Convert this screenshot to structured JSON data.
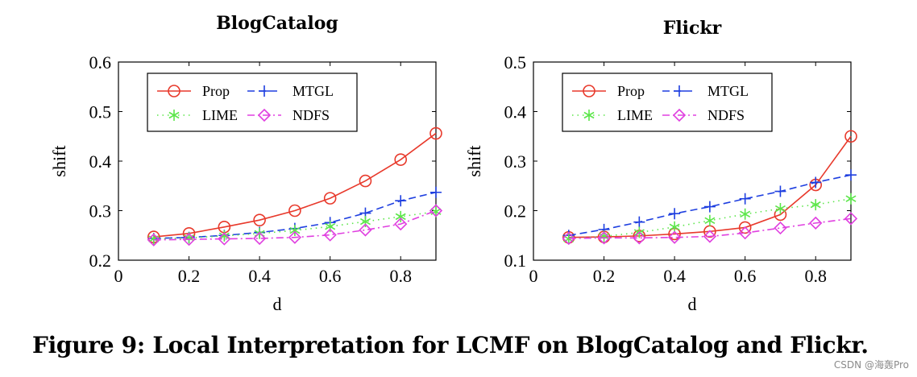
{
  "caption": "Figure 9: Local Interpretation for LCMF on BlogCatalog and Flickr.",
  "watermark": "CSDN @海轰Pro",
  "chart_data": [
    {
      "type": "line",
      "title": "BlogCatalog",
      "xlabel": "d",
      "ylabel": "shift",
      "xlim": [
        0,
        0.9
      ],
      "ylim": [
        0.2,
        0.6
      ],
      "xticks": [
        0,
        0.2,
        0.4,
        0.6,
        0.8
      ],
      "xtick_labels": [
        "0",
        "0.2",
        "0.4",
        "0.6",
        "0.8"
      ],
      "yticks": [
        0.2,
        0.3,
        0.4,
        0.5,
        0.6
      ],
      "ytick_labels": [
        "0.2",
        "0.3",
        "0.4",
        "0.5",
        "0.6"
      ],
      "legend_position": "top-left",
      "x": [
        0.1,
        0.2,
        0.3,
        0.4,
        0.5,
        0.6,
        0.7,
        0.8,
        0.9
      ],
      "series": [
        {
          "name": "Prop",
          "color": "#e8392b",
          "marker": "circle",
          "dash": "solid",
          "values": [
            0.247,
            0.254,
            0.267,
            0.281,
            0.3,
            0.325,
            0.36,
            0.403,
            0.456
          ]
        },
        {
          "name": "MTGL",
          "color": "#1e3fe0",
          "marker": "plus",
          "dash": "dashed",
          "values": [
            0.244,
            0.246,
            0.25,
            0.256,
            0.264,
            0.276,
            0.295,
            0.32,
            0.337
          ]
        },
        {
          "name": "LIME",
          "color": "#5ce64a",
          "marker": "asterisk",
          "dash": "dotted",
          "values": [
            0.243,
            0.245,
            0.249,
            0.254,
            0.26,
            0.268,
            0.278,
            0.288,
            0.298
          ]
        },
        {
          "name": "NDFS",
          "color": "#e040e0",
          "marker": "diamond",
          "dash": "dashdot",
          "values": [
            0.241,
            0.242,
            0.243,
            0.244,
            0.246,
            0.251,
            0.261,
            0.273,
            0.3
          ]
        }
      ]
    },
    {
      "type": "line",
      "title": "Flickr",
      "xlabel": "d",
      "ylabel": "shift",
      "xlim": [
        0,
        0.9
      ],
      "ylim": [
        0.1,
        0.5
      ],
      "xticks": [
        0,
        0.2,
        0.4,
        0.6,
        0.8
      ],
      "xtick_labels": [
        "0",
        "0.2",
        "0.4",
        "0.6",
        "0.8"
      ],
      "yticks": [
        0.1,
        0.2,
        0.3,
        0.4,
        0.5
      ],
      "ytick_labels": [
        "0.1",
        "0.2",
        "0.3",
        "0.4",
        "0.5"
      ],
      "legend_position": "top-left",
      "x": [
        0.1,
        0.2,
        0.3,
        0.4,
        0.5,
        0.6,
        0.7,
        0.8,
        0.9
      ],
      "series": [
        {
          "name": "Prop",
          "color": "#e8392b",
          "marker": "circle",
          "dash": "solid",
          "values": [
            0.146,
            0.147,
            0.149,
            0.153,
            0.158,
            0.166,
            0.192,
            0.252,
            0.35
          ]
        },
        {
          "name": "MTGL",
          "color": "#1e3fe0",
          "marker": "plus",
          "dash": "dashed",
          "values": [
            0.15,
            0.162,
            0.177,
            0.194,
            0.208,
            0.224,
            0.239,
            0.257,
            0.272
          ]
        },
        {
          "name": "LIME",
          "color": "#5ce64a",
          "marker": "asterisk",
          "dash": "dotted",
          "values": [
            0.143,
            0.148,
            0.156,
            0.167,
            0.18,
            0.193,
            0.204,
            0.212,
            0.224
          ]
        },
        {
          "name": "NDFS",
          "color": "#e040e0",
          "marker": "diamond",
          "dash": "dashdot",
          "values": [
            0.144,
            0.145,
            0.145,
            0.146,
            0.148,
            0.155,
            0.165,
            0.175,
            0.184
          ]
        }
      ]
    }
  ]
}
